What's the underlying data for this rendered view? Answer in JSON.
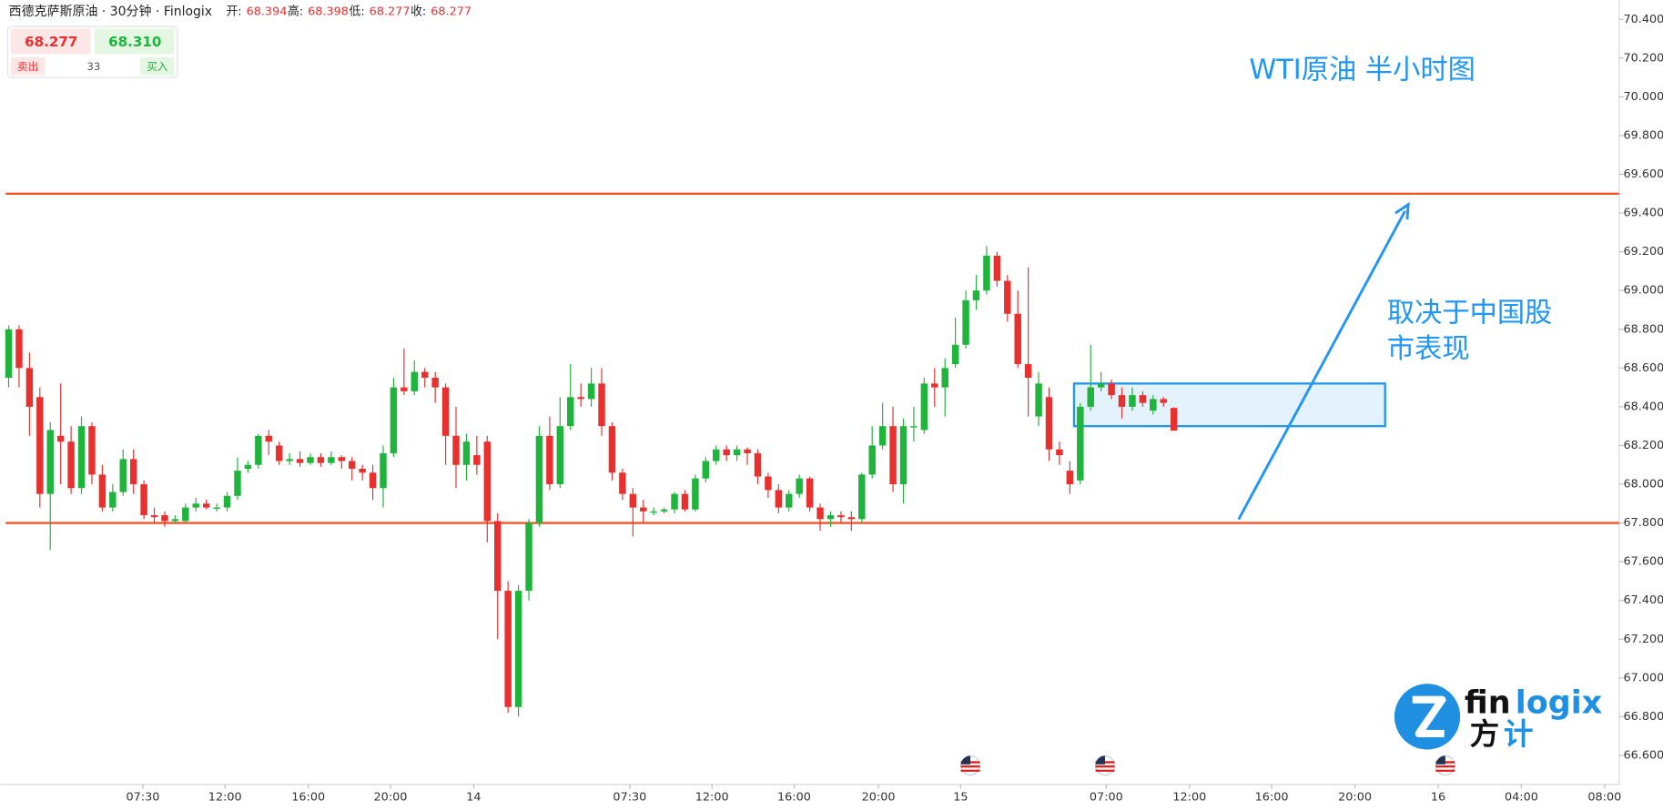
{
  "chart_data": {
    "type": "candlestick",
    "header": {
      "name": "西德克萨斯原油 · 30分钟 · Finlogix",
      "ohlc": [
        {
          "label": "开:",
          "value": "68.394"
        },
        {
          "label": "高:",
          "value": "68.398"
        },
        {
          "label": "低:",
          "value": "68.277"
        },
        {
          "label": "收:",
          "value": "68.277"
        }
      ]
    },
    "quote": {
      "bid": "68.277",
      "ask": "68.310",
      "bid_label": "卖出",
      "ask_label": "买入",
      "spread": "33"
    },
    "title": "WTI原油 半小时图",
    "note": [
      "取决于中国股",
      "市表现"
    ],
    "logo": {
      "a": "fin",
      "b": "logix",
      "c": "方",
      "d": "计"
    },
    "up_color": "#1fb43c",
    "down_color": "#e8302f",
    "level_color": "#f0562c",
    "note_color": "#2196f3",
    "ylim": [
      66.45,
      70.5
    ],
    "yticks": [
      {
        "value": 66.6,
        "label": "66.600"
      },
      {
        "value": 66.8,
        "label": "66.800"
      },
      {
        "value": 67.0,
        "label": "67.000"
      },
      {
        "value": 67.2,
        "label": "67.200"
      },
      {
        "value": 67.4,
        "label": "67.400"
      },
      {
        "value": 67.6,
        "label": "67.600"
      },
      {
        "value": 67.8,
        "label": "67.800"
      },
      {
        "value": 68.0,
        "label": "68.000"
      },
      {
        "value": 68.2,
        "label": "68.200"
      },
      {
        "value": 68.4,
        "label": "68.400"
      },
      {
        "value": 68.6,
        "label": "68.600"
      },
      {
        "value": 68.8,
        "label": "68.800"
      },
      {
        "value": 69.0,
        "label": "69.000"
      },
      {
        "value": 69.2,
        "label": "69.200"
      },
      {
        "value": 69.4,
        "label": "69.400"
      },
      {
        "value": 69.6,
        "label": "69.600"
      },
      {
        "value": 69.8,
        "label": "69.800"
      },
      {
        "value": 70.0,
        "label": "70.000"
      },
      {
        "value": 70.2,
        "label": "70.200"
      },
      {
        "value": 70.4,
        "label": "70.400"
      }
    ],
    "xlim": [
      -0.8,
      154.8
    ],
    "xticks": [
      {
        "value": 12.9,
        "label": "07:30"
      },
      {
        "value": 20.8,
        "label": "12:00"
      },
      {
        "value": 28.8,
        "label": "16:00"
      },
      {
        "value": 36.7,
        "label": "20:00"
      },
      {
        "value": 44.7,
        "label": "14"
      },
      {
        "value": 59.7,
        "label": "07:30"
      },
      {
        "value": 67.6,
        "label": "12:00"
      },
      {
        "value": 75.5,
        "label": "16:00"
      },
      {
        "value": 83.6,
        "label": "20:00"
      },
      {
        "value": 91.5,
        "label": "15"
      },
      {
        "value": 105.5,
        "label": "07:00"
      },
      {
        "value": 113.5,
        "label": "12:00"
      },
      {
        "value": 121.4,
        "label": "16:00"
      },
      {
        "value": 129.4,
        "label": "20:00"
      },
      {
        "value": 137.4,
        "label": "16"
      },
      {
        "value": 145.4,
        "label": "04:00"
      },
      {
        "value": 153.4,
        "label": "08:00"
      }
    ],
    "levels": [
      69.5,
      67.8
    ],
    "box": {
      "x": [
        102.4,
        132.3
      ],
      "y": [
        68.3,
        68.52
      ]
    },
    "open": [
      68.55,
      68.8,
      68.6,
      68.45,
      67.95,
      68.25,
      68.22,
      67.98,
      68.3,
      68.05,
      67.88,
      67.96,
      68.13,
      68.0,
      67.84,
      67.84,
      67.81,
      67.81,
      67.88,
      67.9,
      67.88,
      67.88,
      67.94,
      68.08,
      68.1,
      68.25,
      68.2,
      68.12,
      68.13,
      68.11,
      68.14,
      68.11,
      68.14,
      68.12,
      68.08,
      68.06,
      67.98,
      68.16,
      68.5,
      68.48,
      68.58,
      68.55,
      68.5,
      68.25,
      68.1,
      68.15,
      68.22,
      67.81,
      67.45,
      66.85,
      67.45,
      67.8,
      68.25,
      68.0,
      68.3,
      68.45,
      68.44,
      68.52,
      68.3,
      68.06,
      67.95,
      67.88,
      67.86,
      67.86,
      67.87,
      67.95,
      67.87,
      68.03,
      68.12,
      68.18,
      68.15,
      68.18,
      68.16,
      68.04,
      67.97,
      67.88,
      67.95,
      68.03,
      67.88,
      67.82,
      67.84,
      67.83,
      67.82,
      68.05,
      68.2,
      68.3,
      68.0,
      68.3,
      68.28,
      68.52,
      68.5,
      68.62,
      68.72,
      68.95,
      69.0,
      69.18,
      69.05,
      68.88,
      68.62,
      68.35,
      68.45,
      68.18,
      68.07,
      68.02,
      68.4,
      68.5,
      68.52,
      68.46,
      68.4,
      68.46,
      68.38,
      68.44,
      68.394
    ],
    "high": [
      68.82,
      68.82,
      68.68,
      68.5,
      68.32,
      68.52,
      68.3,
      68.35,
      68.32,
      68.1,
      68.0,
      68.18,
      68.18,
      68.02,
      67.88,
      67.86,
      67.84,
      67.9,
      67.93,
      67.92,
      67.9,
      67.96,
      68.14,
      68.12,
      68.26,
      68.28,
      68.22,
      68.16,
      68.17,
      68.16,
      68.16,
      68.17,
      68.15,
      68.14,
      68.1,
      68.1,
      68.2,
      68.55,
      68.7,
      68.64,
      68.6,
      68.58,
      68.52,
      68.4,
      68.26,
      68.25,
      68.25,
      67.85,
      67.5,
      67.48,
      67.82,
      68.3,
      68.35,
      68.45,
      68.62,
      68.52,
      68.6,
      68.6,
      68.32,
      68.08,
      67.98,
      67.92,
      67.88,
      67.88,
      67.96,
      67.97,
      68.05,
      68.14,
      68.2,
      68.2,
      68.2,
      68.19,
      68.18,
      68.06,
      68.0,
      67.97,
      68.05,
      68.04,
      67.9,
      67.86,
      67.86,
      67.86,
      68.06,
      68.3,
      68.42,
      68.4,
      68.34,
      68.4,
      68.55,
      68.6,
      68.65,
      68.86,
      69.0,
      69.08,
      69.23,
      69.2,
      69.08,
      69.0,
      69.12,
      68.58,
      68.5,
      68.22,
      68.12,
      68.42,
      68.72,
      68.58,
      68.54,
      68.5,
      68.5,
      68.48,
      68.46,
      68.45,
      68.398
    ],
    "low": [
      68.5,
      68.5,
      68.25,
      67.88,
      67.66,
      68.0,
      67.95,
      67.95,
      68.0,
      67.86,
      67.86,
      67.94,
      67.95,
      67.82,
      67.8,
      67.78,
      67.8,
      67.8,
      67.86,
      67.87,
      67.86,
      67.86,
      67.92,
      68.06,
      68.08,
      68.15,
      68.1,
      68.1,
      68.09,
      68.1,
      68.09,
      68.1,
      68.08,
      68.02,
      68.02,
      67.92,
      67.88,
      68.14,
      68.46,
      68.46,
      68.5,
      68.42,
      68.1,
      67.98,
      68.02,
      68.05,
      67.7,
      67.2,
      66.82,
      66.8,
      67.4,
      67.78,
      67.97,
      67.98,
      68.28,
      68.4,
      68.4,
      68.25,
      68.02,
      67.92,
      67.73,
      67.8,
      67.84,
      67.85,
      67.85,
      67.86,
      67.86,
      68.01,
      68.1,
      68.12,
      68.12,
      68.1,
      68.0,
      67.93,
      67.85,
      67.86,
      67.93,
      67.86,
      67.76,
      67.78,
      67.8,
      67.76,
      67.8,
      68.03,
      68.18,
      67.96,
      67.9,
      68.22,
      68.26,
      68.4,
      68.35,
      68.6,
      68.7,
      68.9,
      68.98,
      69.02,
      68.84,
      68.6,
      68.35,
      68.3,
      68.12,
      68.1,
      67.95,
      68.0,
      68.38,
      68.48,
      68.44,
      68.34,
      68.38,
      68.4,
      68.36,
      68.4,
      68.277
    ],
    "close": [
      68.8,
      68.6,
      68.4,
      67.95,
      68.28,
      68.22,
      67.98,
      68.3,
      68.05,
      67.88,
      67.96,
      68.13,
      68.0,
      67.84,
      67.83,
      67.81,
      67.82,
      67.88,
      67.9,
      67.88,
      67.88,
      67.94,
      68.07,
      68.1,
      68.25,
      68.22,
      68.12,
      68.13,
      68.11,
      68.14,
      68.11,
      68.14,
      68.12,
      68.08,
      68.06,
      67.98,
      68.16,
      68.5,
      68.48,
      68.58,
      68.55,
      68.5,
      68.25,
      68.1,
      68.22,
      68.1,
      67.81,
      67.45,
      66.85,
      67.45,
      67.8,
      68.25,
      68.0,
      68.3,
      68.45,
      68.44,
      68.52,
      68.3,
      68.06,
      67.95,
      67.88,
      67.86,
      67.86,
      67.87,
      67.95,
      67.87,
      68.03,
      68.12,
      68.18,
      68.15,
      68.18,
      68.16,
      68.04,
      67.97,
      67.88,
      67.95,
      68.03,
      67.88,
      67.82,
      67.84,
      67.83,
      67.82,
      68.05,
      68.2,
      68.3,
      68.0,
      68.3,
      68.3,
      68.52,
      68.5,
      68.6,
      68.72,
      68.95,
      69.0,
      69.18,
      69.05,
      68.88,
      68.62,
      68.55,
      68.52,
      68.18,
      68.15,
      68.0,
      68.4,
      68.5,
      68.52,
      68.46,
      68.4,
      68.46,
      68.42,
      68.44,
      68.42,
      68.277
    ]
  }
}
